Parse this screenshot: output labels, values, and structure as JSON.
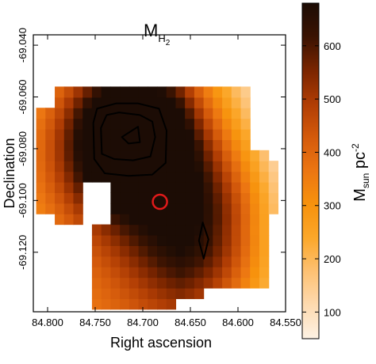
{
  "chart_data": {
    "type": "heatmap",
    "title": {
      "base": "M",
      "subscript": "H",
      "subsubscript": "2"
    },
    "xlabel": "Right ascension",
    "ylabel": "Declination",
    "x_ticks": [
      84.8,
      84.75,
      84.7,
      84.65,
      84.6,
      84.55
    ],
    "x_tick_labels": [
      "84.800",
      "84.750",
      "84.700",
      "84.650",
      "84.600",
      "84.550"
    ],
    "y_ticks": [
      -69.04,
      -69.06,
      -69.08,
      -69.1,
      -69.12
    ],
    "y_tick_labels": [
      "-69.040",
      "-69.060",
      "-69.080",
      "-69.100",
      "-69.120"
    ],
    "xlim": [
      84.815,
      84.55
    ],
    "ylim": [
      -69.143,
      -69.036
    ],
    "colorbar": {
      "label": {
        "base": "M",
        "sub": "sun",
        "mid": " pc",
        "sup": "-2"
      },
      "range": [
        50,
        680
      ],
      "ticks": [
        100,
        200,
        300,
        400,
        500,
        600
      ],
      "tick_labels": [
        "100",
        "200",
        "300",
        "400",
        "500",
        "600"
      ],
      "colors": [
        "#fdf2e4",
        "#fddab0",
        "#fdc173",
        "#fba72a",
        "#f7920d",
        "#ec7612",
        "#d45a0b",
        "#b03d04",
        "#7a2500",
        "#3a1302",
        "#1c0c05"
      ]
    },
    "grid": false,
    "map": {
      "ra_range": [
        84.812,
        84.558
      ],
      "dec_range": [
        -69.142,
        -69.056
      ],
      "pixel_count": [
        26,
        21
      ],
      "peaks": [
        {
          "ra": 84.711,
          "dec": -69.074,
          "value": 660,
          "width": 4.5
        },
        {
          "ra": 84.665,
          "dec": -69.098,
          "value": 330,
          "width": 9
        },
        {
          "ra": 84.635,
          "dec": -69.112,
          "value": 380,
          "width": 5.5
        },
        {
          "ra": 84.748,
          "dec": -69.083,
          "value": 260,
          "width": 7
        }
      ],
      "background": 180,
      "coverage": [
        {
          "ra": [
            84.79,
            84.585
          ],
          "dec": [
            -69.108,
            -69.057
          ]
        },
        {
          "ra": [
            84.812,
            84.605
          ],
          "dec": [
            -69.107,
            -69.065
          ]
        },
        {
          "ra": [
            84.605,
            84.572
          ],
          "dec": [
            -69.132,
            -69.08
          ]
        },
        {
          "ra": [
            84.572,
            84.558
          ],
          "dec": [
            -69.105,
            -69.085
          ]
        },
        {
          "ra": [
            84.758,
            84.595
          ],
          "dec": [
            -69.134,
            -69.107
          ]
        },
        {
          "ra": [
            84.758,
            84.665
          ],
          "dec": [
            -69.142,
            -69.134
          ]
        },
        {
          "ra": [
            84.698,
            84.64
          ],
          "dec": [
            -69.138,
            -69.134
          ]
        }
      ],
      "masked": [
        {
          "ra": [
            84.762,
            84.732
          ],
          "dec": [
            -69.108,
            -69.093
          ]
        }
      ]
    },
    "contours": [
      {
        "color": "#000000",
        "points": [
          [
            84.748,
            -69.0645
          ],
          [
            84.728,
            -69.0625
          ],
          [
            84.705,
            -69.0625
          ],
          [
            84.683,
            -69.0645
          ],
          [
            84.675,
            -69.073
          ],
          [
            84.676,
            -69.0855
          ],
          [
            84.69,
            -69.09
          ],
          [
            84.715,
            -69.0905
          ],
          [
            84.74,
            -69.0895
          ],
          [
            84.751,
            -69.084
          ],
          [
            84.752,
            -69.07
          ]
        ]
      },
      {
        "color": "#000000",
        "points": [
          [
            84.738,
            -69.067
          ],
          [
            84.725,
            -69.066
          ],
          [
            84.703,
            -69.067
          ],
          [
            84.69,
            -69.0695
          ],
          [
            84.687,
            -69.0755
          ],
          [
            84.692,
            -69.083
          ],
          [
            84.71,
            -69.0845
          ],
          [
            84.73,
            -69.084
          ],
          [
            84.743,
            -69.082
          ],
          [
            84.744,
            -69.072
          ]
        ]
      },
      {
        "color": "#000000",
        "points": [
          [
            84.722,
            -69.0755
          ],
          [
            84.705,
            -69.0715
          ],
          [
            84.703,
            -69.0775
          ],
          [
            84.715,
            -69.078
          ]
        ]
      },
      {
        "color": "#000000",
        "points": [
          [
            84.637,
            -69.1085
          ],
          [
            84.631,
            -69.115
          ],
          [
            84.636,
            -69.1225
          ],
          [
            84.641,
            -69.1155
          ]
        ]
      }
    ],
    "markers": [
      {
        "type": "circle",
        "ra": 84.682,
        "dec": -69.1005,
        "radius_deg": 0.0075,
        "color": "#e01a1a"
      }
    ]
  }
}
